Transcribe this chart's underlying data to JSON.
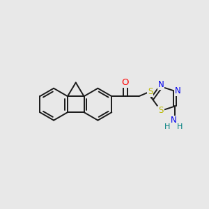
{
  "bg_color": "#e8e8e8",
  "bond_color": "#1a1a1a",
  "bond_width": 1.4,
  "atom_colors": {
    "O": "#ff0000",
    "S": "#b8b800",
    "N": "#0000ee",
    "NH": "#008080",
    "C": "#1a1a1a"
  },
  "font_size": 8.5
}
